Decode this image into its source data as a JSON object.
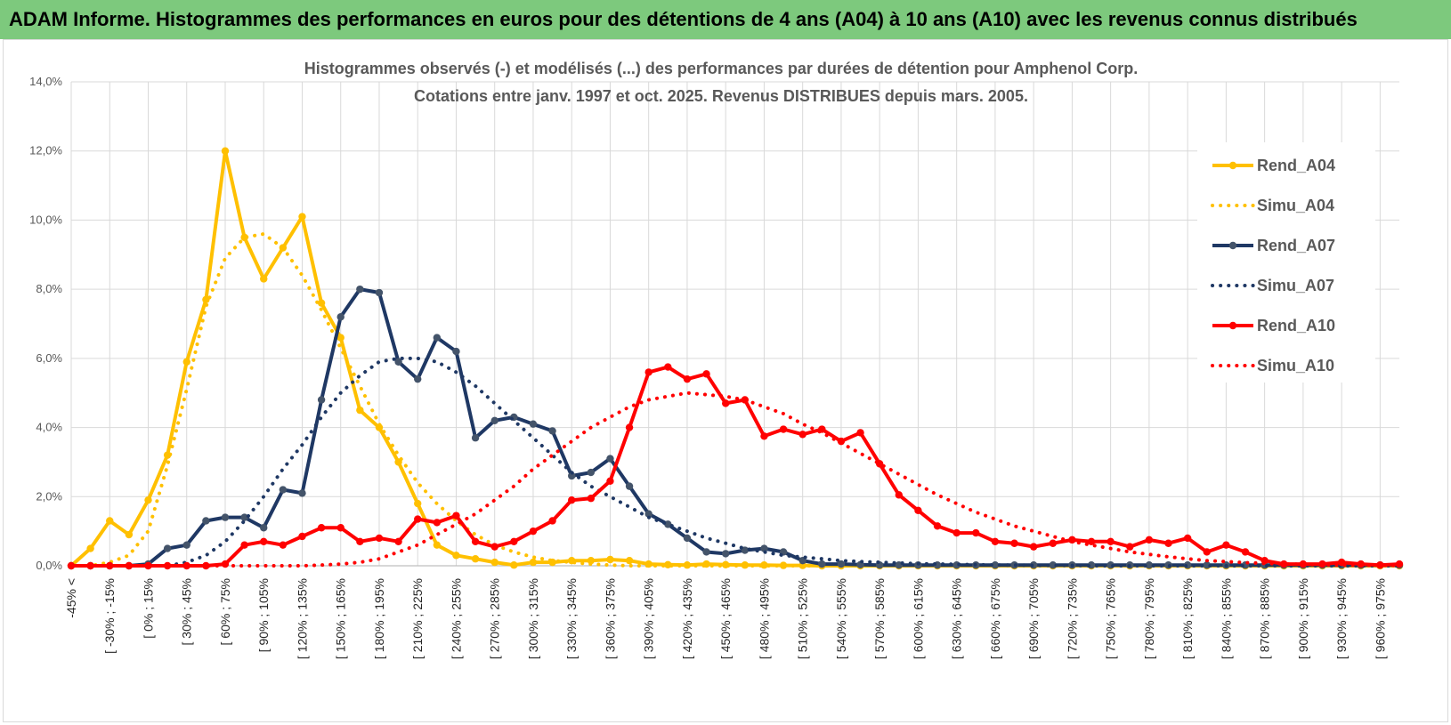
{
  "banner": {
    "title": "ADAM Informe. Histogrammes des performances en euros pour des détentions de 4 ans (A04) à 10 ans (A10) avec les revenus connus distribués"
  },
  "chart_data": {
    "type": "line",
    "title": "Histogrammes observés (-) et modélisés (...) des performances par durées de détention pour Amphenol Corp.",
    "subtitle": "Cotations entre janv. 1997 et oct. 2025.  Revenus DISTRIBUES depuis mars. 2005.",
    "xlabel": "",
    "ylabel": "",
    "ylim": [
      0,
      14
    ],
    "y_ticks": [
      "0,0%",
      "2,0%",
      "4,0%",
      "6,0%",
      "8,0%",
      "10,0%",
      "12,0%",
      "14,0%"
    ],
    "grid": true,
    "legend_position": "right",
    "x_tick_labels": [
      "-45% <",
      "[ -30% ; -15%",
      "[ 0% ; 15%",
      "[ 30% ; 45%",
      "[ 60% ; 75%",
      "[ 90% ; 105%",
      "[ 120% ; 135%",
      "[ 150% ; 165%",
      "[ 180% ; 195%",
      "[ 210% ; 225%",
      "[ 240% ; 255%",
      "[ 270% ; 285%",
      "[ 300% ; 315%",
      "[ 330% ; 345%",
      "[ 360% ; 375%",
      "[ 390% ; 405%",
      "[ 420% ; 435%",
      "[ 450% ; 465%",
      "[ 480% ; 495%",
      "[ 510% ; 525%",
      "[ 540% ; 555%",
      "[ 570% ; 585%",
      "[ 600% ; 615%",
      "[ 630% ; 645%",
      "[ 660% ; 675%",
      "[ 690% ; 705%",
      "[ 720% ; 735%",
      "[ 750% ; 765%",
      "[ 780% ; 795%",
      "[ 810% ; 825%",
      "[ 840% ; 855%",
      "[ 870% ; 885%",
      "[ 900% ; 915%",
      "[ 930% ; 945%",
      "[ 960% ; 975%"
    ],
    "series": [
      {
        "name": "Rend_A04",
        "color": "#ffc000",
        "style": "solid",
        "values": [
          0,
          0.5,
          1.3,
          0.9,
          1.9,
          3.2,
          5.9,
          7.7,
          12.0,
          9.5,
          8.3,
          9.2,
          10.1,
          7.6,
          6.6,
          4.5,
          4.0,
          3.0,
          1.8,
          0.6,
          0.3,
          0.2,
          0.1,
          0.02,
          0.1,
          0.1,
          0.15,
          0.15,
          0.18,
          0.15,
          0.05,
          0.03,
          0.02,
          0.05,
          0.03,
          0.02,
          0.02,
          0.01,
          0.01,
          0,
          0,
          0,
          0,
          0,
          0,
          0,
          0,
          0,
          0,
          0,
          0,
          0,
          0,
          0,
          0,
          0,
          0,
          0,
          0,
          0,
          0,
          0,
          0,
          0,
          0,
          0,
          0,
          0,
          0,
          0
        ]
      },
      {
        "name": "Simu_A04",
        "color": "#ffc000",
        "style": "dotted",
        "values": [
          0,
          0,
          0.1,
          0.3,
          1.0,
          2.9,
          5.1,
          7.5,
          8.9,
          9.5,
          9.6,
          9.2,
          8.4,
          7.4,
          6.3,
          5.2,
          4.1,
          3.2,
          2.4,
          1.8,
          1.3,
          0.9,
          0.6,
          0.4,
          0.25,
          0.15,
          0.1,
          0.05,
          0.02,
          0,
          0,
          0,
          0,
          0,
          0,
          0,
          0,
          0,
          0,
          0,
          0,
          0,
          0,
          0,
          0,
          0,
          0,
          0,
          0,
          0,
          0,
          0,
          0,
          0,
          0,
          0,
          0,
          0,
          0,
          0,
          0,
          0,
          0,
          0,
          0,
          0,
          0,
          0,
          0,
          0
        ]
      },
      {
        "name": "Rend_A07",
        "color": "#1f3864",
        "style": "solid",
        "values": [
          0,
          0,
          0,
          0,
          0.05,
          0.5,
          0.6,
          1.3,
          1.4,
          1.4,
          1.1,
          2.2,
          2.1,
          4.8,
          7.2,
          8.0,
          7.9,
          5.9,
          5.4,
          6.6,
          6.2,
          3.7,
          4.2,
          4.3,
          4.1,
          3.9,
          2.6,
          2.7,
          3.1,
          2.3,
          1.5,
          1.2,
          0.8,
          0.4,
          0.35,
          0.45,
          0.5,
          0.4,
          0.15,
          0.05,
          0.05,
          0.03,
          0.02,
          0.02,
          0.02,
          0.02,
          0.02,
          0.02,
          0.02,
          0.02,
          0.02,
          0.02,
          0.02,
          0.02,
          0.02,
          0.02,
          0.02,
          0.02,
          0.02,
          0.02,
          0.02,
          0.02,
          0.02,
          0.02,
          0.02,
          0.02,
          0.02,
          0.02,
          0.02,
          0.02
        ]
      },
      {
        "name": "Simu_A07",
        "color": "#1f3864",
        "style": "dotted",
        "values": [
          0,
          0,
          0,
          0,
          0,
          0,
          0.1,
          0.3,
          0.7,
          1.3,
          2.0,
          2.8,
          3.5,
          4.3,
          5.0,
          5.5,
          5.9,
          6.0,
          6.0,
          5.9,
          5.6,
          5.2,
          4.7,
          4.2,
          3.7,
          3.2,
          2.7,
          2.3,
          2.0,
          1.7,
          1.4,
          1.2,
          1.0,
          0.8,
          0.65,
          0.5,
          0.4,
          0.3,
          0.25,
          0.2,
          0.15,
          0.12,
          0.1,
          0.08,
          0.06,
          0.05,
          0.04,
          0.03,
          0.02,
          0.02,
          0.01,
          0.01,
          0.01,
          0,
          0,
          0,
          0,
          0,
          0,
          0,
          0,
          0,
          0,
          0,
          0,
          0,
          0,
          0,
          0,
          0
        ]
      },
      {
        "name": "Rend_A10",
        "color": "#ff0000",
        "style": "solid",
        "values": [
          0,
          0,
          0,
          0,
          0,
          0,
          0,
          0,
          0.05,
          0.6,
          0.7,
          0.6,
          0.85,
          1.1,
          1.1,
          0.7,
          0.8,
          0.7,
          1.35,
          1.25,
          1.45,
          0.7,
          0.55,
          0.7,
          1.0,
          1.3,
          1.9,
          1.95,
          2.45,
          4.0,
          5.6,
          5.75,
          5.4,
          5.55,
          4.7,
          4.8,
          3.75,
          3.95,
          3.8,
          3.95,
          3.6,
          3.85,
          2.95,
          2.05,
          1.6,
          1.15,
          0.95,
          0.95,
          0.7,
          0.65,
          0.55,
          0.65,
          0.75,
          0.7,
          0.7,
          0.55,
          0.75,
          0.65,
          0.8,
          0.4,
          0.6,
          0.4,
          0.15,
          0.05,
          0.05,
          0.05,
          0.1,
          0.05,
          0.02,
          0.05
        ]
      },
      {
        "name": "Simu_A10",
        "color": "#ff0000",
        "style": "dotted",
        "values": [
          0,
          0,
          0,
          0,
          0,
          0,
          0,
          0,
          0,
          0,
          0,
          0,
          0,
          0.02,
          0.05,
          0.1,
          0.2,
          0.4,
          0.6,
          0.9,
          1.2,
          1.5,
          1.9,
          2.3,
          2.8,
          3.2,
          3.6,
          4.0,
          4.3,
          4.6,
          4.8,
          4.9,
          5.0,
          4.95,
          4.9,
          4.8,
          4.6,
          4.4,
          4.1,
          3.85,
          3.55,
          3.25,
          2.95,
          2.65,
          2.35,
          2.05,
          1.8,
          1.55,
          1.35,
          1.15,
          1.0,
          0.85,
          0.7,
          0.6,
          0.5,
          0.4,
          0.33,
          0.26,
          0.2,
          0.15,
          0.12,
          0.09,
          0.07,
          0.05,
          0.04,
          0.03,
          0.02,
          0.02,
          0.01,
          0.01
        ]
      }
    ]
  }
}
